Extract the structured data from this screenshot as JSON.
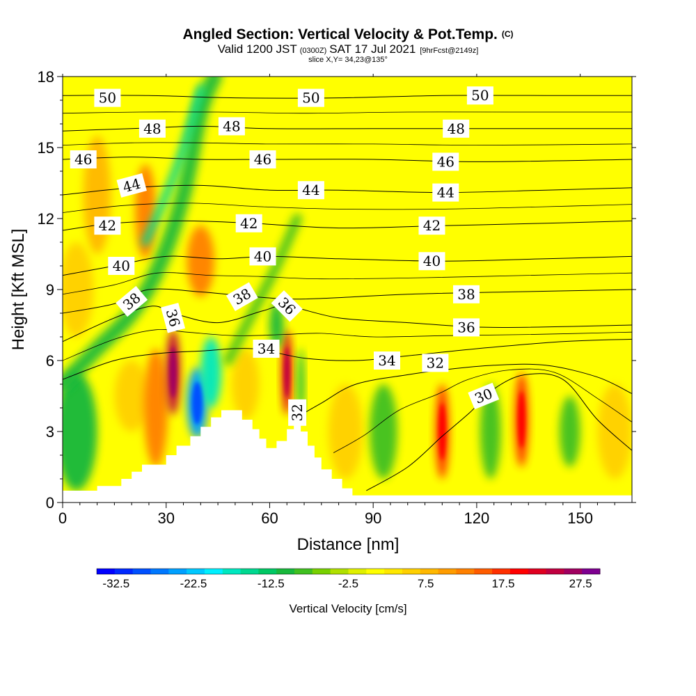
{
  "header": {
    "title": "Angled Section: Vertical Velocity & Pot.Temp.",
    "title_unit": "(C)",
    "valid_prefix": "Valid 1200 JST",
    "valid_zulu": "(0300Z)",
    "valid_date": "SAT 17 Jul 2021",
    "forecast": "[9hrFcst@2149z]",
    "slice": "slice X,Y= 34,23@135°"
  },
  "chart_data": {
    "type": "heatmap",
    "xlabel": "Distance [nm]",
    "ylabel": "Height [Kft MSL]",
    "xlim": [
      0,
      165
    ],
    "ylim": [
      0,
      18
    ],
    "x_ticks": [
      "0",
      "30",
      "60",
      "90",
      "120",
      "150"
    ],
    "y_ticks": [
      "0",
      "3",
      "6",
      "9",
      "12",
      "15",
      "18"
    ],
    "colorbar": {
      "label": "Vertical Velocity [cm/s]",
      "tick_labels": [
        "-32.5",
        "-22.5",
        "-12.5",
        "-2.5",
        "7.5",
        "17.5",
        "27.5"
      ],
      "min": -35,
      "max": 30,
      "step": 2.5,
      "colors": [
        "#0000ff",
        "#0028ff",
        "#0050ff",
        "#0078ff",
        "#00a0ff",
        "#00c8ff",
        "#00f0ff",
        "#00e8c0",
        "#00d890",
        "#00c864",
        "#18b83c",
        "#40c020",
        "#78d000",
        "#b0e000",
        "#e0f000",
        "#ffff00",
        "#ffe800",
        "#ffd000",
        "#ffb800",
        "#ff9c00",
        "#ff8000",
        "#ff5c00",
        "#ff3000",
        "#ff0000",
        "#e00020",
        "#c00040",
        "#a00060",
        "#7e0090"
      ]
    },
    "terrain_kft": [
      [
        0,
        0.5
      ],
      [
        10,
        0.5
      ],
      [
        10,
        0.7
      ],
      [
        17,
        0.7
      ],
      [
        17,
        1.0
      ],
      [
        20,
        1.0
      ],
      [
        20,
        1.3
      ],
      [
        23,
        1.3
      ],
      [
        23,
        1.6
      ],
      [
        30,
        1.6
      ],
      [
        30,
        2.0
      ],
      [
        33,
        2.0
      ],
      [
        33,
        2.4
      ],
      [
        37,
        2.4
      ],
      [
        37,
        2.8
      ],
      [
        40,
        2.8
      ],
      [
        40,
        3.2
      ],
      [
        43,
        3.2
      ],
      [
        43,
        3.6
      ],
      [
        46,
        3.6
      ],
      [
        46,
        3.9
      ],
      [
        52,
        3.9
      ],
      [
        52,
        3.5
      ],
      [
        55,
        3.5
      ],
      [
        55,
        3.1
      ],
      [
        57,
        3.1
      ],
      [
        57,
        2.7
      ],
      [
        59,
        2.7
      ],
      [
        59,
        2.3
      ],
      [
        62,
        2.3
      ],
      [
        62,
        2.6
      ],
      [
        65,
        2.6
      ],
      [
        65,
        3.1
      ],
      [
        67,
        3.1
      ],
      [
        67,
        3.7
      ],
      [
        69,
        3.7
      ],
      [
        69,
        3.0
      ],
      [
        71,
        3.0
      ],
      [
        71,
        2.4
      ],
      [
        73,
        2.4
      ],
      [
        73,
        1.9
      ],
      [
        75,
        1.9
      ],
      [
        75,
        1.4
      ],
      [
        78,
        1.4
      ],
      [
        78,
        1.0
      ],
      [
        81,
        1.0
      ],
      [
        81,
        0.6
      ],
      [
        84,
        0.6
      ],
      [
        84,
        0.3
      ],
      [
        88,
        0.3
      ],
      [
        88,
        0.3
      ],
      [
        165,
        0.3
      ]
    ],
    "velocity_regions": [
      {
        "x": 10,
        "y": 13.0,
        "rx": 4,
        "ry": 2.5,
        "value": 10
      },
      {
        "x": 24,
        "y": 12.3,
        "rx": 3,
        "ry": 2.0,
        "value": 15
      },
      {
        "x": 4,
        "y": 9.0,
        "rx": 5,
        "ry": 2.0,
        "value": 7.5
      },
      {
        "x": 4,
        "y": 3.0,
        "rx": 6,
        "ry": 2.5,
        "value": -10
      },
      {
        "x": 20,
        "y": 4.5,
        "rx": 5,
        "ry": 1.5,
        "value": 7.5
      },
      {
        "x": 27,
        "y": 4.0,
        "rx": 3.5,
        "ry": 2.5,
        "value": 15
      },
      {
        "x": 32,
        "y": 5.5,
        "rx": 2,
        "ry": 1.8,
        "value": 27.5
      },
      {
        "x": 39,
        "y": 4.2,
        "rx": 3,
        "ry": 1.5,
        "value": -25
      },
      {
        "x": 43,
        "y": 5.5,
        "rx": 3,
        "ry": 1.5,
        "value": -17.5
      },
      {
        "x": 40,
        "y": 10.2,
        "rx": 4,
        "ry": 1.5,
        "value": 15
      },
      {
        "x": 53,
        "y": 5.0,
        "rx": 4,
        "ry": 1.5,
        "value": 7.5
      },
      {
        "x": 65,
        "y": 5.5,
        "rx": 1.5,
        "ry": 1.8,
        "value": 25
      },
      {
        "x": 62,
        "y": 7.5,
        "rx": 2,
        "ry": 1.0,
        "value": -10
      },
      {
        "x": 69,
        "y": 5.0,
        "rx": 1,
        "ry": 1.5,
        "value": -10
      },
      {
        "x": 82,
        "y": 3.0,
        "rx": 5,
        "ry": 2.0,
        "value": 7.5
      },
      {
        "x": 93,
        "y": 3.0,
        "rx": 4,
        "ry": 2.0,
        "value": -7.5
      },
      {
        "x": 110,
        "y": 3.0,
        "rx": 2,
        "ry": 2.0,
        "value": 20
      },
      {
        "x": 124,
        "y": 3.0,
        "rx": 3,
        "ry": 2.0,
        "value": -7.5
      },
      {
        "x": 133,
        "y": 3.5,
        "rx": 2,
        "ry": 2.0,
        "value": 20
      },
      {
        "x": 147,
        "y": 3.0,
        "rx": 3,
        "ry": 1.5,
        "value": -7.5
      },
      {
        "x": 160,
        "y": 3.0,
        "rx": 5,
        "ry": 2.0,
        "value": 7.5
      }
    ],
    "velocity_bands": [
      {
        "points": [
          [
            0,
            5.0
          ],
          [
            10,
            6.5
          ],
          [
            20,
            8.0
          ],
          [
            28,
            10.0
          ],
          [
            35,
            13.0
          ],
          [
            40,
            16.5
          ],
          [
            44,
            18.0
          ]
        ],
        "width": 2.2,
        "value": -10
      },
      {
        "points": [
          [
            24,
            11.0
          ],
          [
            30,
            13.0
          ],
          [
            35,
            15.0
          ],
          [
            40,
            17.5
          ]
        ],
        "width": 1.2,
        "value": -15
      },
      {
        "points": [
          [
            48,
            6.0
          ],
          [
            55,
            8.0
          ],
          [
            62,
            10.0
          ],
          [
            68,
            12.0
          ]
        ],
        "width": 1.4,
        "value": -7.5
      }
    ],
    "isentropes": [
      {
        "value": 30,
        "label_x": 122,
        "label_y": 4.5,
        "label_angle": -22,
        "points": [
          [
            88,
            0.5
          ],
          [
            100,
            1.5
          ],
          [
            110,
            2.8
          ],
          [
            118,
            3.8
          ],
          [
            125,
            4.8
          ],
          [
            134,
            5.4
          ],
          [
            145,
            5.2
          ],
          [
            155,
            3.5
          ],
          [
            165,
            2.2
          ]
        ]
      },
      {
        "value": 32,
        "label_x": 68,
        "label_y": 3.8,
        "label_angle": -90,
        "points": [
          [
            69,
            3.7
          ],
          [
            75,
            4.2
          ],
          [
            85,
            5.0
          ],
          [
            100,
            5.4
          ],
          [
            110,
            5.6
          ],
          [
            125,
            5.8
          ],
          [
            140,
            5.8
          ],
          [
            155,
            5.3
          ],
          [
            165,
            4.6
          ]
        ]
      },
      {
        "value": 34,
        "label_x": 59,
        "label_y": 6.5,
        "label_angle": 0,
        "points": [
          [
            0,
            5.2
          ],
          [
            15,
            6.0
          ],
          [
            28,
            6.3
          ],
          [
            40,
            6.4
          ],
          [
            55,
            6.5
          ],
          [
            70,
            6.1
          ],
          [
            85,
            6.0
          ],
          [
            100,
            6.2
          ],
          [
            120,
            6.5
          ],
          [
            145,
            6.8
          ],
          [
            165,
            6.9
          ]
        ]
      },
      {
        "value": 36,
        "label_x": 32,
        "label_y": 7.8,
        "label_angle": 75,
        "points": [
          [
            0,
            6.8
          ],
          [
            15,
            7.8
          ],
          [
            26,
            8.3
          ],
          [
            32,
            8.0
          ],
          [
            45,
            7.6
          ],
          [
            58,
            8.1
          ],
          [
            65,
            8.3
          ],
          [
            80,
            7.8
          ],
          [
            100,
            7.6
          ],
          [
            125,
            7.4
          ],
          [
            165,
            7.5
          ]
        ]
      },
      {
        "value": 38,
        "label_x": 20,
        "label_y": 8.5,
        "label_angle": -40,
        "points": [
          [
            0,
            8.0
          ],
          [
            15,
            8.4
          ],
          [
            25,
            9.0
          ],
          [
            40,
            8.9
          ],
          [
            55,
            8.7
          ],
          [
            70,
            8.6
          ],
          [
            100,
            8.8
          ],
          [
            130,
            8.9
          ],
          [
            165,
            9.0
          ]
        ]
      },
      {
        "value": 40,
        "label_x": 17,
        "label_y": 10.0,
        "label_angle": 0,
        "points": [
          [
            0,
            9.6
          ],
          [
            15,
            10.0
          ],
          [
            30,
            10.4
          ],
          [
            45,
            10.3
          ],
          [
            60,
            10.4
          ],
          [
            80,
            10.3
          ],
          [
            110,
            10.2
          ],
          [
            140,
            10.3
          ],
          [
            165,
            10.4
          ]
        ]
      },
      {
        "value": 42,
        "label_x": 13,
        "label_y": 11.7,
        "label_angle": 0,
        "points": [
          [
            0,
            11.5
          ],
          [
            15,
            11.8
          ],
          [
            35,
            11.9
          ],
          [
            55,
            11.8
          ],
          [
            80,
            11.6
          ],
          [
            110,
            11.7
          ],
          [
            140,
            11.8
          ],
          [
            165,
            11.9
          ]
        ]
      },
      {
        "value": 44,
        "label_x": 20,
        "label_y": 13.4,
        "label_angle": -15,
        "points": [
          [
            0,
            13.0
          ],
          [
            20,
            13.3
          ],
          [
            40,
            13.4
          ],
          [
            60,
            13.2
          ],
          [
            80,
            13.2
          ],
          [
            110,
            13.1
          ],
          [
            140,
            13.2
          ],
          [
            165,
            13.3
          ]
        ]
      },
      {
        "value": 46,
        "label_x": 6,
        "label_y": 14.5,
        "label_angle": 0,
        "points": [
          [
            0,
            14.5
          ],
          [
            20,
            14.6
          ],
          [
            40,
            14.5
          ],
          [
            60,
            14.5
          ],
          [
            90,
            14.5
          ],
          [
            120,
            14.4
          ],
          [
            165,
            14.5
          ]
        ]
      },
      {
        "value": 48,
        "label_x": 26,
        "label_y": 15.8,
        "label_angle": 0,
        "points": [
          [
            0,
            15.7
          ],
          [
            20,
            15.8
          ],
          [
            40,
            15.9
          ],
          [
            60,
            15.8
          ],
          [
            90,
            15.8
          ],
          [
            120,
            15.8
          ],
          [
            165,
            15.8
          ]
        ]
      },
      {
        "value": 50,
        "label_x": 13,
        "label_y": 17.1,
        "label_angle": 0,
        "points": [
          [
            0,
            17.2
          ],
          [
            25,
            17.2
          ],
          [
            50,
            17.1
          ],
          [
            80,
            17.1
          ],
          [
            110,
            17.2
          ],
          [
            140,
            17.2
          ],
          [
            165,
            17.2
          ]
        ]
      }
    ],
    "extra_isentrope_labels": [
      {
        "text": "50",
        "x": 72,
        "y": 17.1,
        "angle": 0
      },
      {
        "text": "50",
        "x": 121,
        "y": 17.2,
        "angle": 0
      },
      {
        "text": "48",
        "x": 49,
        "y": 15.9,
        "angle": 0
      },
      {
        "text": "48",
        "x": 114,
        "y": 15.8,
        "angle": 0
      },
      {
        "text": "46",
        "x": 58,
        "y": 14.5,
        "angle": 0
      },
      {
        "text": "46",
        "x": 111,
        "y": 14.4,
        "angle": 0
      },
      {
        "text": "44",
        "x": 72,
        "y": 13.2,
        "angle": 0
      },
      {
        "text": "44",
        "x": 111,
        "y": 13.1,
        "angle": 0
      },
      {
        "text": "42",
        "x": 54,
        "y": 11.8,
        "angle": 0
      },
      {
        "text": "42",
        "x": 107,
        "y": 11.7,
        "angle": 0
      },
      {
        "text": "40",
        "x": 58,
        "y": 10.4,
        "angle": 0
      },
      {
        "text": "40",
        "x": 107,
        "y": 10.2,
        "angle": 0
      },
      {
        "text": "38",
        "x": 52,
        "y": 8.7,
        "angle": -30
      },
      {
        "text": "38",
        "x": 117,
        "y": 8.8,
        "angle": 0
      },
      {
        "text": "36",
        "x": 65,
        "y": 8.3,
        "angle": 45
      },
      {
        "text": "36",
        "x": 117,
        "y": 7.4,
        "angle": 0
      },
      {
        "text": "34",
        "x": 94,
        "y": 6.0,
        "angle": 0
      },
      {
        "text": "32",
        "x": 108,
        "y": 5.9,
        "angle": 0
      }
    ]
  }
}
